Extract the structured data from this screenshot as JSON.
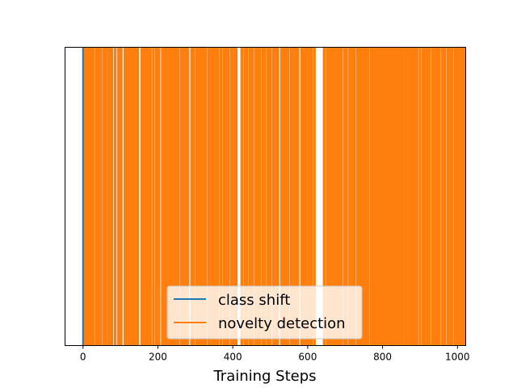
{
  "chart_data": {
    "type": "event-lines",
    "title": "",
    "xlabel": "Training Steps",
    "ylabel": "",
    "xlim": [
      -48,
      1022
    ],
    "xticks": [
      0,
      200,
      400,
      600,
      800,
      1000
    ],
    "y_ticks_visible": false,
    "grid": false,
    "legend": {
      "placement": "bottom-center",
      "entries": [
        "class shift",
        "novelty detection"
      ]
    },
    "series": [
      {
        "name": "class shift",
        "color": "#1f77b4",
        "x": [
          0
        ]
      },
      {
        "name": "novelty detection",
        "color": "#ff7f0e",
        "x": [
          4,
          8,
          13,
          18,
          22,
          27,
          35,
          40,
          47,
          55,
          60,
          67,
          72,
          77,
          86,
          95,
          102,
          112,
          118,
          124,
          130,
          136,
          141,
          146,
          157,
          162,
          168,
          174,
          180,
          188,
          196,
          203,
          212,
          218,
          224,
          230,
          236,
          241,
          248,
          254,
          262,
          268,
          275,
          280,
          290,
          296,
          304,
          310,
          316,
          322,
          328,
          336,
          342,
          348,
          354,
          360,
          368,
          376,
          382,
          388,
          396,
          403,
          409,
          424,
          432,
          438,
          446,
          452,
          460,
          466,
          472,
          480,
          486,
          494,
          500,
          508,
          514,
          520,
          530,
          536,
          542,
          548,
          556,
          562,
          568,
          574,
          584,
          590,
          596,
          603,
          610,
          618,
          644,
          652,
          658,
          664,
          671,
          678,
          684,
          690,
          698,
          704,
          712,
          718,
          724,
          732,
          738,
          744,
          750,
          756,
          762,
          770,
          776,
          782,
          788,
          794,
          800,
          806,
          812,
          818,
          824,
          830,
          836,
          842,
          848,
          855,
          862,
          868,
          874,
          880,
          886,
          892,
          900,
          908,
          914,
          920,
          926,
          934,
          940,
          946,
          952,
          960,
          966,
          974,
          980,
          986,
          994,
          1000,
          1006,
          1012,
          1018
        ]
      }
    ]
  }
}
